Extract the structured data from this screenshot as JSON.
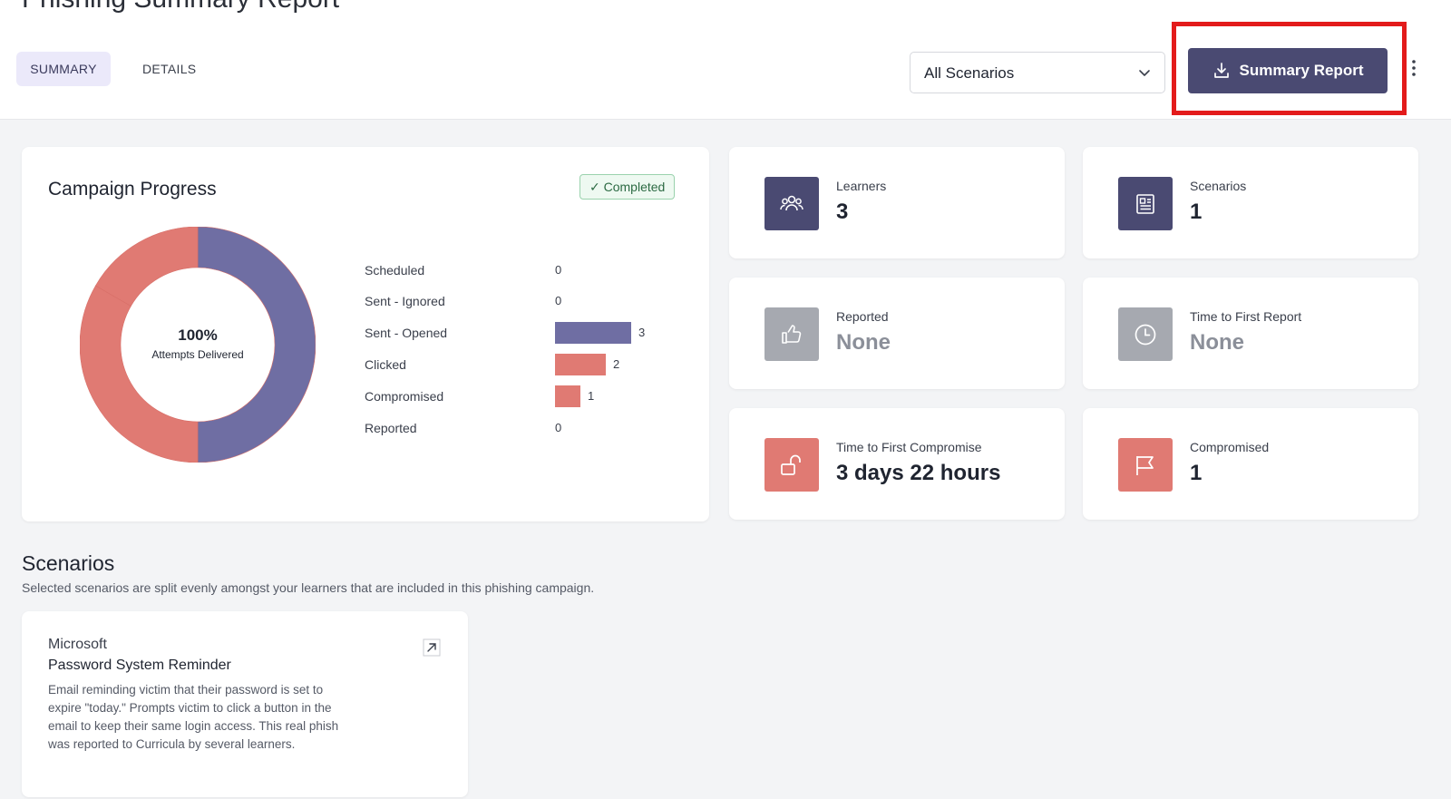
{
  "header": {
    "title": "Phishing Summary Report",
    "tabs": [
      {
        "label": "SUMMARY",
        "active": true
      },
      {
        "label": "DETAILS",
        "active": false
      }
    ],
    "scenario_filter": {
      "value": "All Scenarios"
    },
    "summary_button": {
      "label": "Summary Report"
    }
  },
  "colors": {
    "primary": "#4a4a72",
    "opened": "#6f6ea3",
    "clicked": "#e07a73",
    "muted_icon": "#a6a9b0",
    "highlight": "#e31b1b"
  },
  "progress": {
    "title": "Campaign Progress",
    "status_badge": "✓ Completed",
    "donut": {
      "percent_label": "100%",
      "caption": "Attempts Delivered"
    },
    "legend": [
      {
        "label": "Scheduled",
        "count": "0",
        "value": 0
      },
      {
        "label": "Sent - Ignored",
        "count": "0",
        "value": 0
      },
      {
        "label": "Sent - Opened",
        "count": "3",
        "value": 3
      },
      {
        "label": "Clicked",
        "count": "2",
        "value": 2
      },
      {
        "label": "Compromised",
        "count": "1",
        "value": 1
      },
      {
        "label": "Reported",
        "count": "0",
        "value": 0
      }
    ]
  },
  "stats": [
    {
      "label": "Learners",
      "value": "3",
      "icon": "users-icon"
    },
    {
      "label": "Scenarios",
      "value": "1",
      "icon": "newspaper-icon"
    },
    {
      "label": "Reported",
      "value": "None",
      "icon": "thumbs-up-icon"
    },
    {
      "label": "Time to First Report",
      "value": "None",
      "icon": "clock-icon"
    },
    {
      "label": "Time to First Compromise",
      "value": "3 days 22 hours",
      "icon": "unlock-icon"
    },
    {
      "label": "Compromised",
      "value": "1",
      "icon": "flag-icon"
    }
  ],
  "scenarios_section": {
    "title": "Scenarios",
    "description": "Selected scenarios are split evenly amongst your learners that are included in this phishing campaign.",
    "items": [
      {
        "vendor": "Microsoft",
        "title": "Password System Reminder",
        "description": "Email reminding victim that their password is set to expire \"today.\" Prompts victim to click a button in the email to keep their same login access. This real phish was reported to Curricula by several learners."
      }
    ]
  }
}
